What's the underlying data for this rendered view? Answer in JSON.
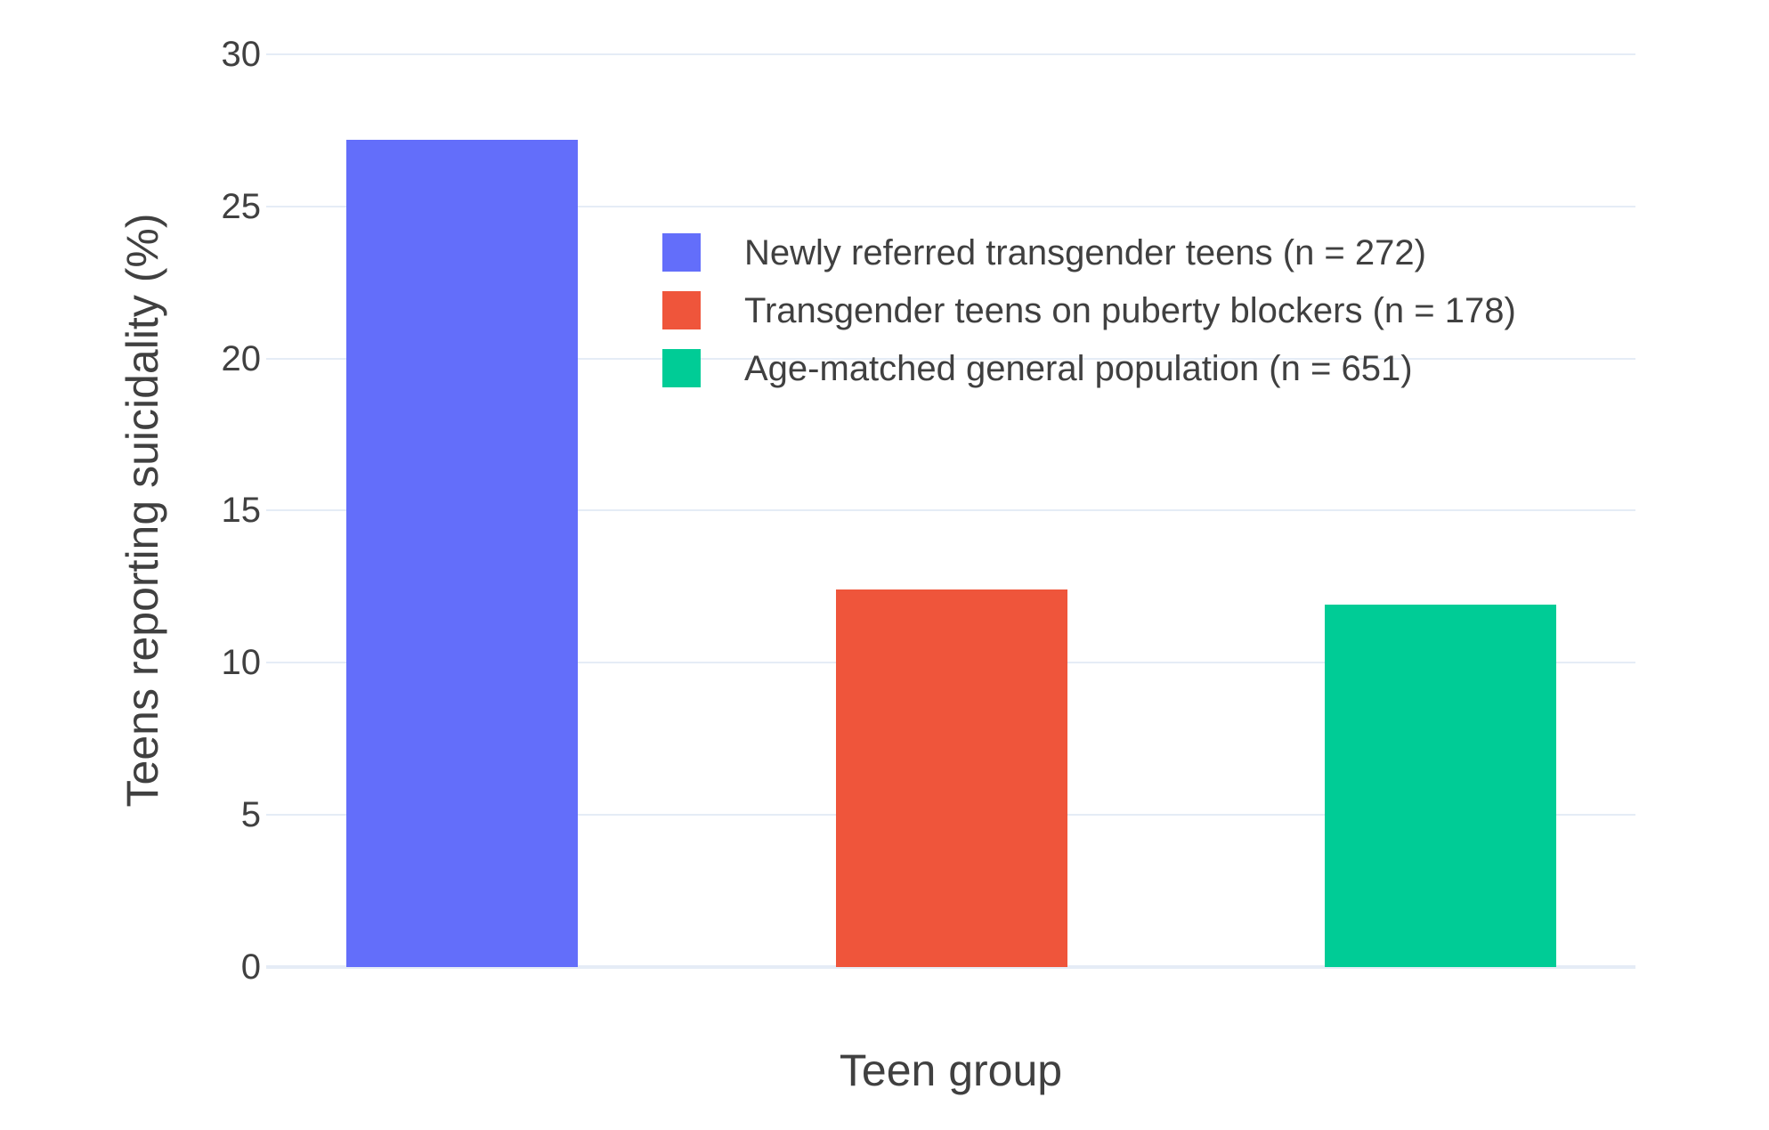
{
  "chart_data": {
    "type": "bar",
    "title": "",
    "xlabel": "Teen group",
    "ylabel": "Teens reporting suicidality (%)",
    "categories": [
      "Newly referred transgender teens (n = 272)",
      "Transgender teens on puberty blockers (n = 178)",
      "Age-matched general population (n = 651)"
    ],
    "series": [
      {
        "name": "Newly referred transgender teens (n = 272)",
        "n": 272,
        "value": 27.2,
        "color": "#636EFA"
      },
      {
        "name": "Transgender teens on puberty blockers (n = 178)",
        "n": 178,
        "value": 12.4,
        "color": "#EF553B"
      },
      {
        "name": "Age-matched general population (n = 651)",
        "n": 651,
        "value": 11.9,
        "color": "#00CC96"
      }
    ],
    "ylim": [
      0,
      30
    ],
    "yticks": [
      0,
      5,
      10,
      15,
      20,
      25,
      30
    ],
    "grid": true,
    "x_tick_labels_shown": false,
    "legend_position": "inside-upper-center",
    "colors": {
      "background": "#ffffff",
      "gridline": "#E5ECF6",
      "zeroline": "#E5ECF6",
      "text": "#404040"
    }
  }
}
